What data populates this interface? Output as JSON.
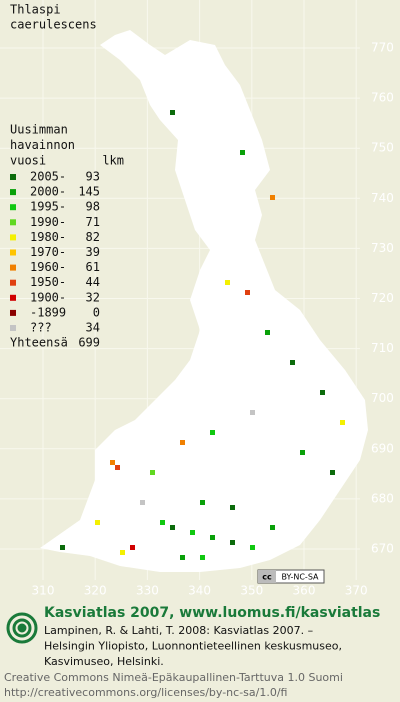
{
  "title_lines": [
    "Thlaspi",
    "caerulescens"
  ],
  "legend": {
    "heading_lines": [
      "Uusimman",
      "havainnon",
      "vuosi"
    ],
    "count_heading": "lkm",
    "rows": [
      {
        "label": "2005-",
        "count": 93,
        "color": "#0b6b0b"
      },
      {
        "label": "2000-",
        "count": 145,
        "color": "#08a008"
      },
      {
        "label": "1995-",
        "count": 98,
        "color": "#10c810"
      },
      {
        "label": "1990-",
        "count": 71,
        "color": "#60d820"
      },
      {
        "label": "1980-",
        "count": 82,
        "color": "#f4f000"
      },
      {
        "label": "1970-",
        "count": 39,
        "color": "#ffc400"
      },
      {
        "label": "1960-",
        "count": 61,
        "color": "#f08000"
      },
      {
        "label": "1950-",
        "count": 44,
        "color": "#e04010"
      },
      {
        "label": "1900-",
        "count": 32,
        "color": "#d00000"
      },
      {
        "label": "-1899",
        "count": 0,
        "color": "#8a0000"
      },
      {
        "label": "???",
        "count": 34,
        "color": "#c4c4c4"
      }
    ],
    "total": {
      "label": "Yhteensä",
      "count": 699
    }
  },
  "grid": {
    "north": [
      770,
      760,
      750,
      740,
      730,
      720,
      710,
      700,
      690,
      680,
      670
    ],
    "east": [
      310,
      320,
      330,
      340,
      350,
      360,
      370
    ]
  },
  "license_badge": {
    "icon": "cc",
    "text": "BY-NC-SA"
  },
  "footer": {
    "site": "Kasviatlas 2007, www.luomus.fi/kasviatlas",
    "citation": [
      "Lampinen, R. & Lahti, T. 2008: Kasviatlas 2007. –",
      "Helsingin Yliopisto, Luonnontieteellinen keskusmuseo,",
      "Kasvimuseo, Helsinki."
    ],
    "license": [
      "Creative Commons Nimeä-Epäkaupallinen-Tarttuva 1.0 Suomi",
      "http://creativecommons.org/licenses/by-nc-sa/1.0/fi"
    ]
  }
}
